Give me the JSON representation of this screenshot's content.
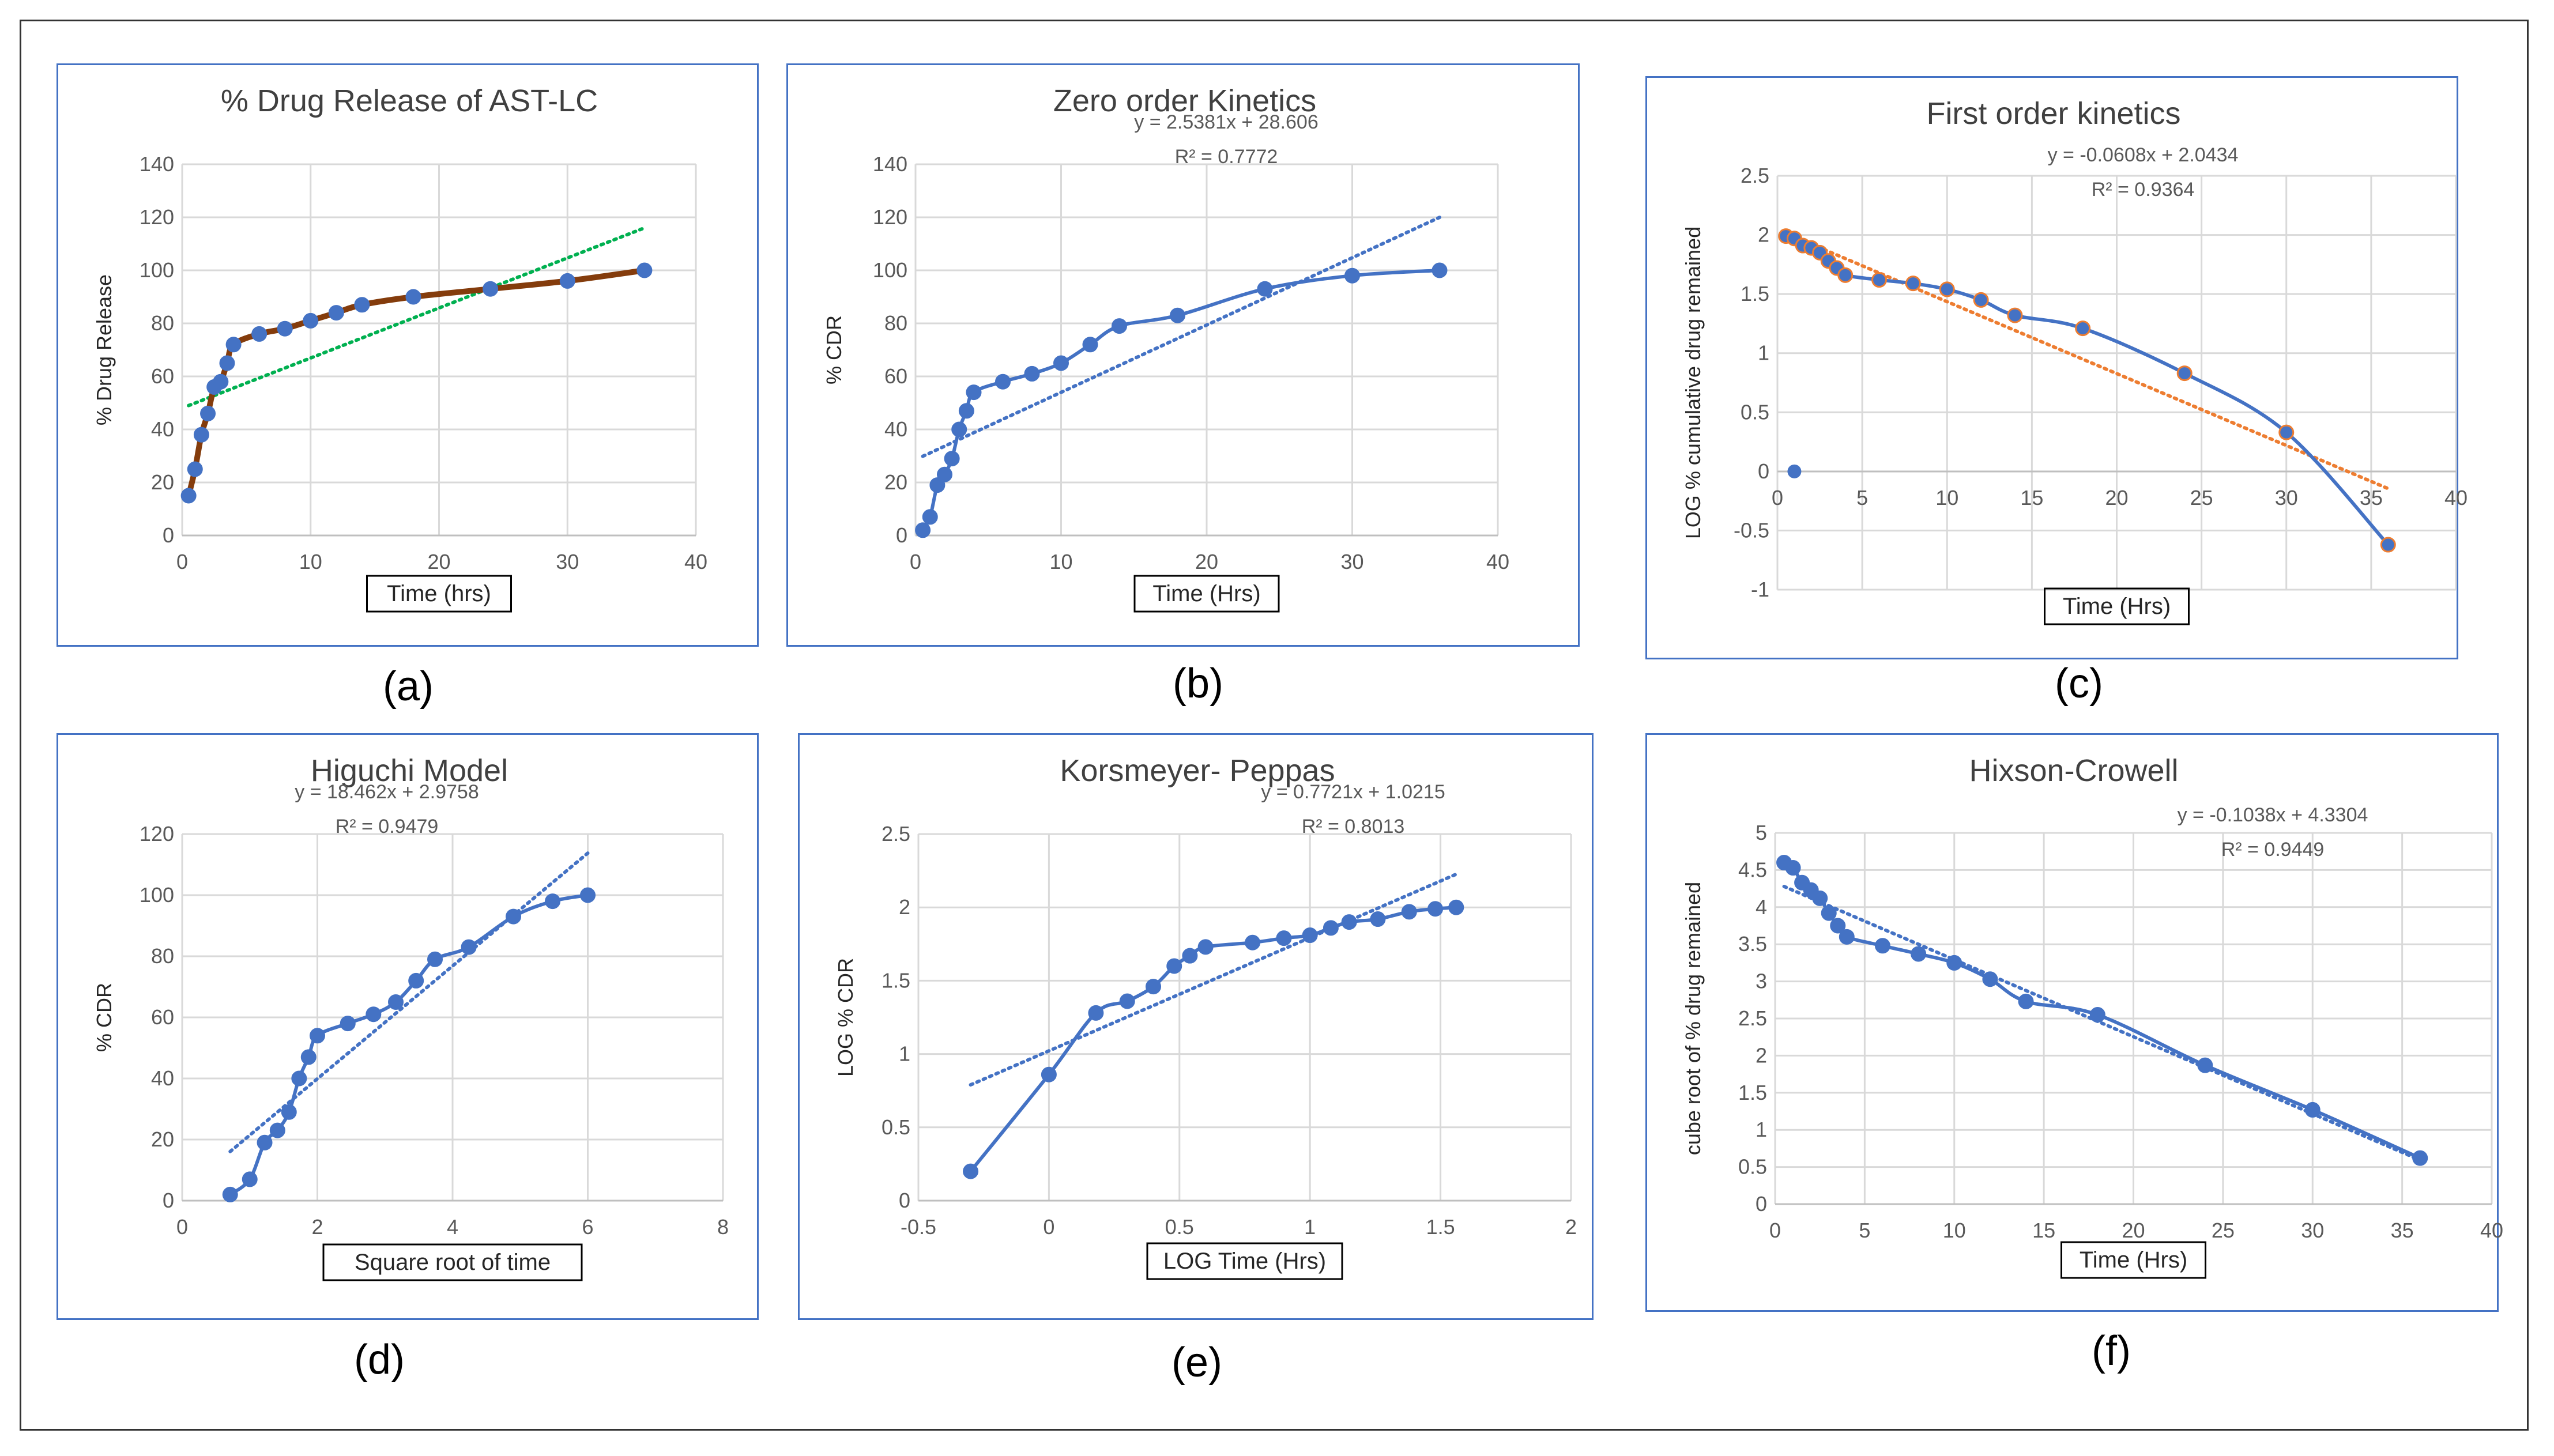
{
  "charts": [
    {
      "panel_label": "(a)",
      "chart_data": {
        "type": "line",
        "title": "% Drug Release of AST-LC",
        "xlabel": "Time (hrs)",
        "ylabel": "% Drug Release",
        "xlim": [
          0,
          40
        ],
        "ylim": [
          0,
          140
        ],
        "xticks": [
          "0",
          "10",
          "20",
          "30",
          "40"
        ],
        "yticks": [
          "0",
          "20",
          "40",
          "60",
          "80",
          "100",
          "120",
          "140"
        ],
        "x": [
          0.5,
          1,
          1.5,
          2,
          2.5,
          3,
          3.5,
          4,
          6,
          8,
          10,
          12,
          14,
          18,
          24,
          30,
          36
        ],
        "series": [
          {
            "values": [
              15,
              25,
              38,
              46,
              56,
              58,
              65,
              72,
              76,
              78,
              81,
              84,
              87,
              90,
              93,
              96,
              100
            ]
          }
        ],
        "trendline": {
          "style": "dotted",
          "y_at_xmin": 49,
          "y_at_xmax": 116
        },
        "colors": {
          "line": "#843c0c",
          "marker": "#4472c4",
          "trend": "#00b050"
        },
        "grid": true,
        "legend": "none"
      }
    },
    {
      "panel_label": "(b)",
      "chart_data": {
        "type": "line",
        "title": "Zero order Kinetics",
        "xlabel": "Time (Hrs)",
        "ylabel": "% CDR",
        "xlim": [
          0,
          40
        ],
        "ylim": [
          0,
          140
        ],
        "xticks": [
          "0",
          "10",
          "20",
          "30",
          "40"
        ],
        "yticks": [
          "0",
          "20",
          "40",
          "60",
          "80",
          "100",
          "120",
          "140"
        ],
        "x": [
          0.5,
          1,
          1.5,
          2,
          2.5,
          3,
          3.5,
          4,
          6,
          8,
          10,
          12,
          14,
          18,
          24,
          30,
          36
        ],
        "series": [
          {
            "values": [
              2,
              7,
              19,
              23,
              29,
              40,
              47,
              54,
              58,
              61,
              65,
              72,
              79,
              83,
              93,
              98,
              100
            ]
          }
        ],
        "trendline": {
          "style": "dotted",
          "slope": 2.5381,
          "intercept": 28.606
        },
        "annotations": [
          "y = 2.5381x + 28.606",
          "R² = 0.7772"
        ],
        "colors": {
          "line": "#4472c4",
          "marker": "#4472c4",
          "trend": "#4472c4"
        },
        "grid": true,
        "legend": "none"
      }
    },
    {
      "panel_label": "(c)",
      "chart_data": {
        "type": "line",
        "title": "First order kinetics",
        "xlabel": "Time (Hrs)",
        "ylabel": "LOG % cumulative drug remained",
        "xlim": [
          0,
          40
        ],
        "ylim": [
          -1,
          2.5
        ],
        "xticks": [
          "0",
          "5",
          "10",
          "15",
          "20",
          "25",
          "30",
          "35",
          "40"
        ],
        "yticks": [
          "-1",
          "-0.5",
          "0",
          "0.5",
          "1",
          "1.5",
          "2",
          "2.5"
        ],
        "x": [
          0.5,
          1,
          1.5,
          2,
          2.5,
          3,
          3.5,
          4,
          6,
          8,
          10,
          12,
          14,
          18,
          24,
          30,
          36
        ],
        "series": [
          {
            "values": [
              1.99,
              1.97,
              1.91,
              1.89,
              1.85,
              1.78,
              1.72,
              1.66,
              1.62,
              1.59,
              1.54,
              1.45,
              1.32,
              1.21,
              0.83,
              0.33,
              -0.62
            ]
          }
        ],
        "outlier": {
          "x": 1,
          "y": 0
        },
        "trendline": {
          "style": "dotted",
          "slope": -0.0608,
          "intercept": 2.0434
        },
        "annotations": [
          "y = -0.0608x + 2.0434",
          "R² = 0.9364"
        ],
        "colors": {
          "line": "#4472c4",
          "marker": "#4472c4",
          "marker_edge": "#ed7d31",
          "trend": "#ed7d31"
        },
        "grid": true,
        "legend": "none"
      }
    },
    {
      "panel_label": "(d)",
      "chart_data": {
        "type": "line",
        "title": "Higuchi Model",
        "xlabel": "Square root of time",
        "ylabel": "% CDR",
        "xlim": [
          0,
          8
        ],
        "ylim": [
          0,
          120
        ],
        "xticks": [
          "0",
          "2",
          "4",
          "6",
          "8"
        ],
        "yticks": [
          "0",
          "20",
          "40",
          "60",
          "80",
          "100",
          "120"
        ],
        "x": [
          0.71,
          1.0,
          1.22,
          1.41,
          1.58,
          1.73,
          1.87,
          2.0,
          2.45,
          2.83,
          3.16,
          3.46,
          3.74,
          4.24,
          4.9,
          5.48,
          6.0
        ],
        "series": [
          {
            "values": [
              2,
              7,
              19,
              23,
              29,
              40,
              47,
              54,
              58,
              61,
              65,
              72,
              79,
              83,
              93,
              98,
              100
            ]
          }
        ],
        "trendline": {
          "style": "dotted",
          "slope": 18.462,
          "intercept": 2.9758
        },
        "annotations": [
          "y = 18.462x + 2.9758",
          "R² = 0.9479"
        ],
        "colors": {
          "line": "#4472c4",
          "marker": "#4472c4",
          "trend": "#4472c4"
        },
        "grid": true,
        "legend": "none"
      }
    },
    {
      "panel_label": "(e)",
      "chart_data": {
        "type": "line",
        "title": "Korsmeyer- Peppas",
        "xlabel": "LOG Time (Hrs)",
        "ylabel": "LOG % CDR",
        "xlim": [
          -0.5,
          2
        ],
        "ylim": [
          0,
          2.5
        ],
        "xticks": [
          "-0.5",
          "0",
          "0.5",
          "1",
          "1.5",
          "2"
        ],
        "yticks": [
          "0",
          "0.5",
          "1",
          "1.5",
          "2",
          "2.5"
        ],
        "x": [
          -0.3,
          0,
          0.18,
          0.3,
          0.4,
          0.48,
          0.54,
          0.6,
          0.78,
          0.9,
          1.0,
          1.08,
          1.15,
          1.26,
          1.38,
          1.48,
          1.56
        ],
        "series": [
          {
            "values": [
              0.2,
              0.86,
              1.28,
              1.36,
              1.46,
              1.6,
              1.67,
              1.73,
              1.76,
              1.79,
              1.81,
              1.86,
              1.9,
              1.92,
              1.97,
              1.99,
              2.0
            ]
          }
        ],
        "trendline": {
          "style": "dotted",
          "slope": 0.7721,
          "intercept": 1.0215
        },
        "annotations": [
          "y = 0.7721x + 1.0215",
          "R² = 0.8013"
        ],
        "colors": {
          "line": "#4472c4",
          "marker": "#4472c4",
          "trend": "#4472c4"
        },
        "grid": true,
        "legend": "none"
      }
    },
    {
      "panel_label": "(f)",
      "chart_data": {
        "type": "line",
        "title": "Hixson-Crowell",
        "xlabel": "Time (Hrs)",
        "ylabel": "cube root of % drug remained",
        "xlim": [
          0,
          40
        ],
        "ylim": [
          0,
          5
        ],
        "xticks": [
          "0",
          "5",
          "10",
          "15",
          "20",
          "25",
          "30",
          "35",
          "40"
        ],
        "yticks": [
          "0",
          "0.5",
          "1",
          "1.5",
          "2",
          "2.5",
          "3",
          "3.5",
          "4",
          "4.5",
          "5"
        ],
        "x": [
          0.5,
          1,
          1.5,
          2,
          2.5,
          3,
          3.5,
          4,
          6,
          8,
          10,
          12,
          14,
          18,
          24,
          30,
          36
        ],
        "series": [
          {
            "values": [
              4.6,
              4.53,
              4.33,
              4.23,
              4.12,
              3.92,
              3.75,
              3.6,
              3.48,
              3.37,
              3.25,
              3.03,
              2.73,
              2.55,
              1.87,
              1.27,
              0.62
            ]
          }
        ],
        "trendline": {
          "style": "dotted",
          "slope": -0.1038,
          "intercept": 4.3304
        },
        "annotations": [
          "y = -0.1038x + 4.3304",
          "R² = 0.9449"
        ],
        "colors": {
          "line": "#4472c4",
          "marker": "#4472c4",
          "trend": "#4472c4"
        },
        "grid": true,
        "legend": "none"
      }
    }
  ]
}
